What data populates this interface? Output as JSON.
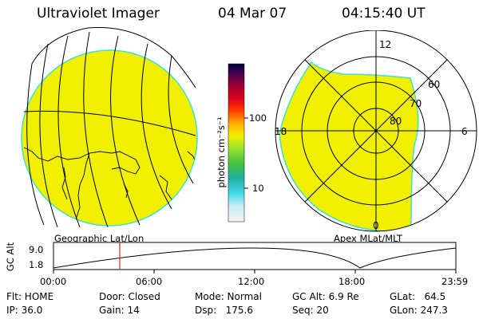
{
  "header": {
    "title": "Ultraviolet Imager",
    "date": "04 Mar 07",
    "time": "04:15:40 UT"
  },
  "colors": {
    "fill_yellow": "#f0f000",
    "limb_cyan": "#40e0d0",
    "marker_red": "#e02020"
  },
  "colorbar": {
    "unit_label": "photon cm⁻²s⁻¹",
    "tick_100": "100",
    "tick_10": "10"
  },
  "polar_plot": {
    "mlt_top": "12",
    "mlt_left": "18",
    "mlt_right": "6",
    "mlt_bottom": "0",
    "lat_60": "60",
    "lat_70": "70",
    "lat_80": "80"
  },
  "geo_label": "Geographic Lat/Lon",
  "apex_label": "Apex MLat/MLT",
  "altitude_plot": {
    "ylabel": "GC Alt",
    "y_max": "9.0",
    "y_min": "1.8",
    "x_ticks": [
      "00:00",
      "06:00",
      "12:00",
      "18:00",
      "23:59"
    ]
  },
  "info": {
    "flt": "Flt: HOME",
    "ip": "IP: 36.0",
    "door": "Door: Closed",
    "gain": "Gain: 14",
    "mode": "Mode: Normal",
    "dsp": "Dsp:   175.6",
    "gcalt": "GC Alt: 6.9 Re",
    "seq": "Seq: 20",
    "glat": "GLat:   64.5",
    "glon": "GLon: 247.3"
  }
}
